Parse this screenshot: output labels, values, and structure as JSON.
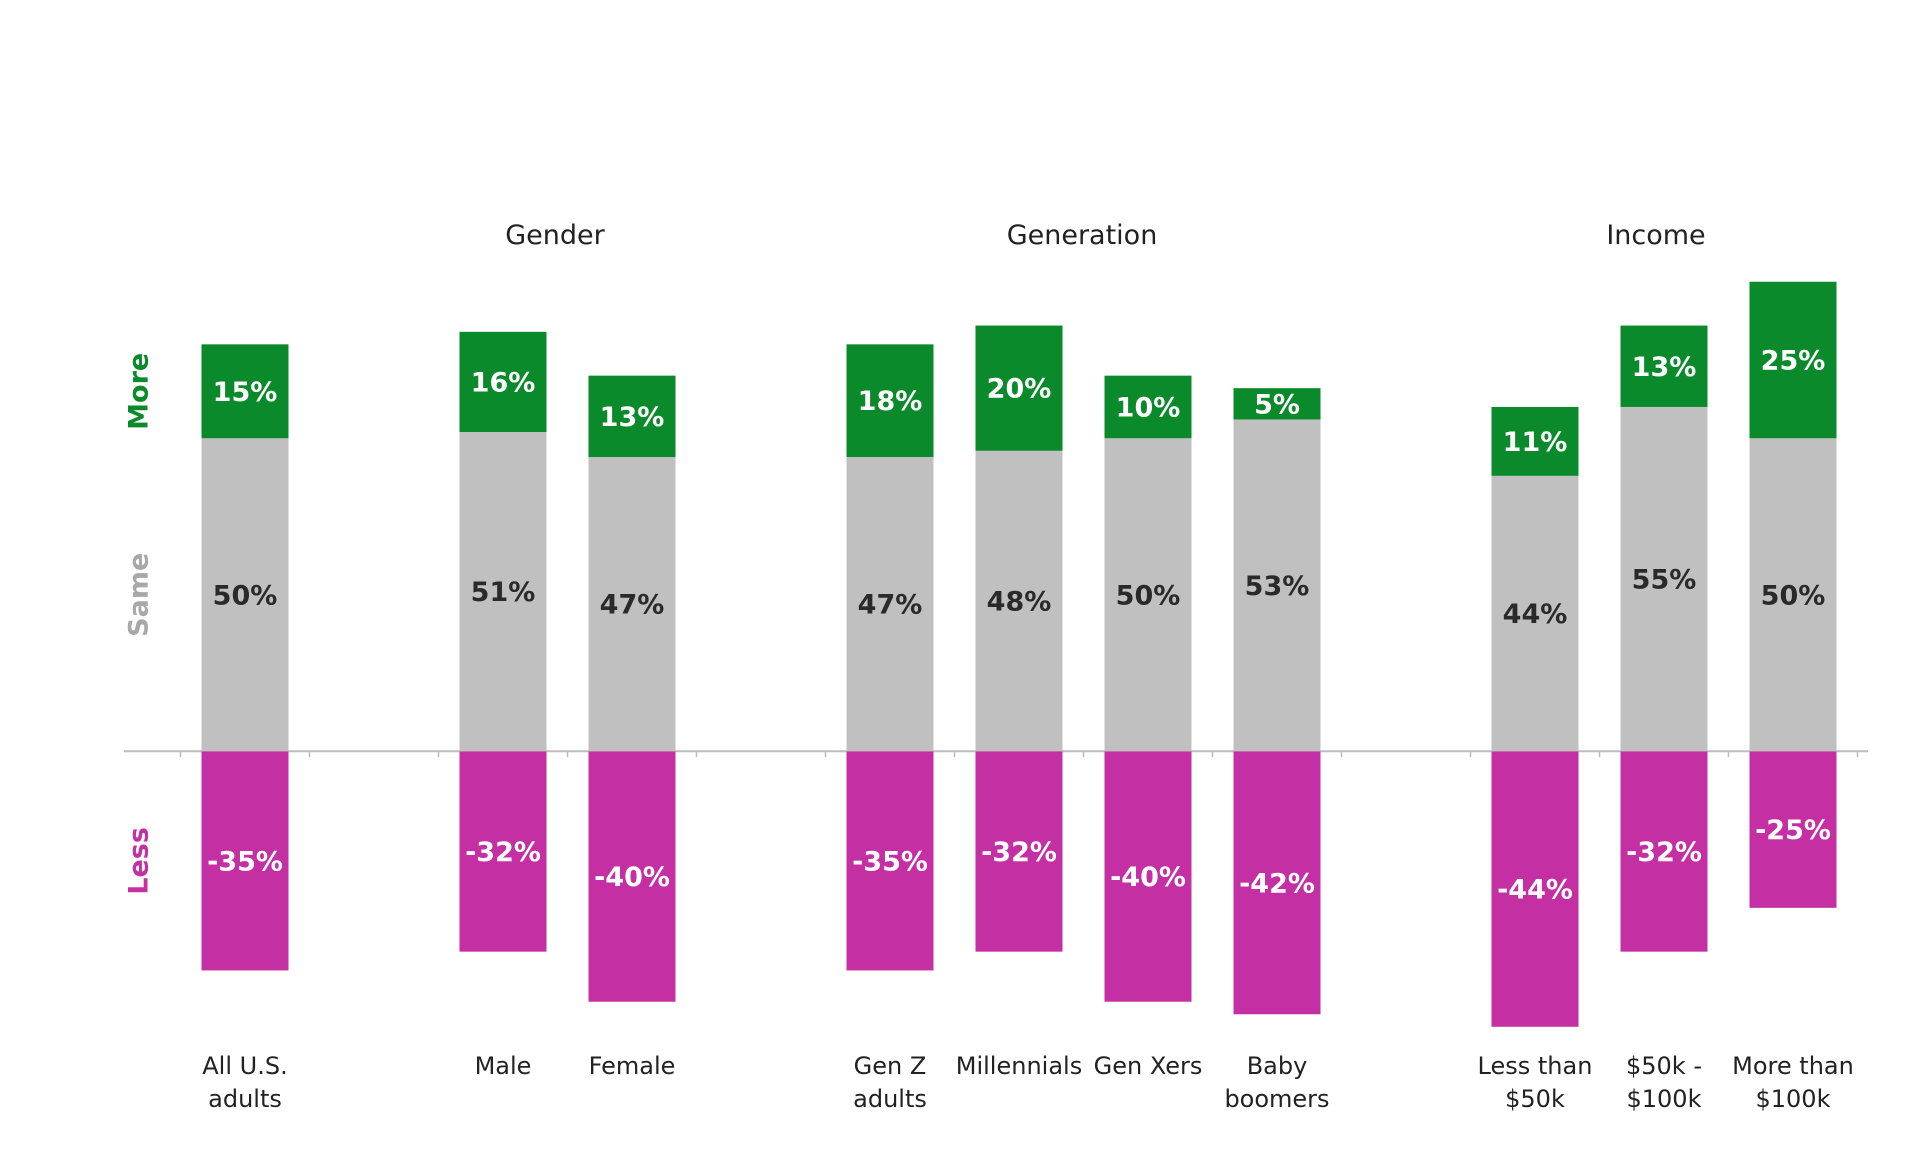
{
  "chart_data": {
    "type": "diverging_stacked_bar",
    "groups": [
      "Gender",
      "Generation",
      "Income"
    ],
    "categories": [
      "All U.S.\nadults",
      null,
      "Male",
      "Female",
      null,
      "Gen Z\nadults",
      "Millennials",
      "Gen Xers",
      "Baby\nboomers",
      null,
      "Less than\n$50k",
      "$50k -\n$100k",
      "More than\n$100k"
    ],
    "series": [
      {
        "name": "Less",
        "color": "#c42fa3",
        "legend_color": "#c42fa3",
        "values": [
          -35,
          null,
          -32,
          -40,
          null,
          -35,
          -32,
          -40,
          -42,
          null,
          -44,
          -32,
          -25
        ],
        "value_labels": [
          "-35%",
          null,
          "-32%",
          "-40%",
          null,
          "-35%",
          "-32%",
          "-40%",
          "-42%",
          null,
          "-44%",
          "-32%",
          "-25%"
        ],
        "label_color": "#ffffff"
      },
      {
        "name": "Same",
        "color": "#c0c0c0",
        "legend_color": "#a8a8a8",
        "values": [
          50,
          null,
          51,
          47,
          null,
          47,
          48,
          50,
          53,
          null,
          44,
          55,
          50
        ],
        "value_labels": [
          "50%",
          null,
          "51%",
          "47%",
          null,
          "47%",
          "48%",
          "50%",
          "53%",
          null,
          "44%",
          "55%",
          "50%"
        ],
        "label_color": "#2a2a2a"
      },
      {
        "name": "More",
        "color": "#0a8a2a",
        "legend_color": "#0a8a2a",
        "values": [
          15,
          null,
          16,
          13,
          null,
          18,
          20,
          10,
          5,
          null,
          11,
          13,
          25
        ],
        "value_labels": [
          "15%",
          null,
          "16%",
          "13%",
          null,
          "18%",
          "20%",
          "10%",
          "5%",
          null,
          "11%",
          "13%",
          "25%"
        ],
        "label_color": "#ffffff"
      }
    ],
    "ylim": [
      -64,
      120
    ]
  }
}
